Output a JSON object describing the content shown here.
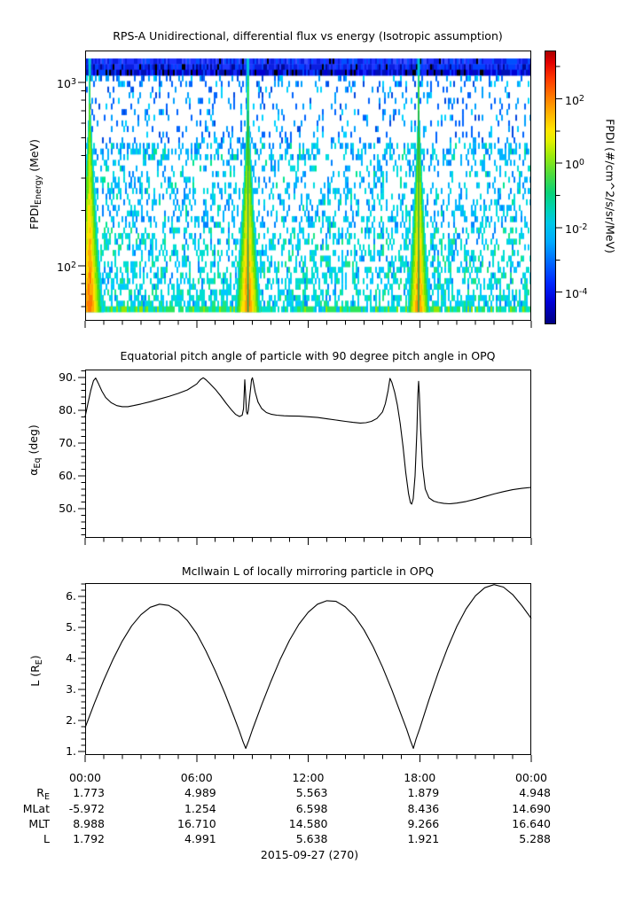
{
  "figure": {
    "date_label": "2015-09-27 (270)"
  },
  "panels": {
    "flux": {
      "title": "RPS-A Unidirectional, differential flux vs energy (Isotropic assumption)",
      "ylabel": {
        "pre": "FPDI",
        "sub": "Energy",
        "post": " (MeV)"
      },
      "yticks": [
        {
          "base": "10",
          "exp": "3",
          "value": 1000
        },
        {
          "base": "10",
          "exp": "2",
          "value": 100
        }
      ],
      "colorbar": {
        "label": "FPDI (#/cm^2/s/sr/MeV)",
        "major_ticks": [
          {
            "base": "10",
            "exp": "2",
            "k": 2
          },
          {
            "base": "10",
            "exp": "0",
            "k": 0
          },
          {
            "base": "10",
            "exp": "-2",
            "k": -2
          },
          {
            "base": "10",
            "exp": "-4",
            "k": -4
          }
        ],
        "minor_k": [
          3,
          1,
          -1,
          -3
        ]
      }
    },
    "pitch": {
      "title": "Equatorial pitch angle of particle with 90 degree pitch angle in OPQ",
      "ylabel": {
        "pre": "α",
        "sub": "Eq",
        "post": " (deg)"
      },
      "ytick_values": [
        50,
        60,
        70,
        80,
        90
      ],
      "ytick_labels": [
        "50.",
        "60.",
        "70.",
        "80.",
        "90."
      ]
    },
    "mcilwain": {
      "title": "McIlwain L of locally mirroring particle in OPQ",
      "ylabel": {
        "pre": "L (R",
        "sub": "E",
        "post": ")"
      },
      "ytick_values": [
        1,
        2,
        3,
        4,
        5,
        6
      ],
      "ytick_labels": [
        "1.",
        "2.",
        "3.",
        "4.",
        "5.",
        "6."
      ]
    }
  },
  "time_axis": {
    "tick_labels": [
      "00:00",
      "06:00",
      "12:00",
      "18:00",
      "00:00"
    ],
    "tick_hours": [
      0,
      6,
      12,
      18,
      24
    ],
    "minor_step_h": 1
  },
  "table": {
    "rows": [
      {
        "label": {
          "pre": "R",
          "sub": "E",
          "post": ""
        },
        "values": [
          "1.773",
          "4.989",
          "5.563",
          "1.879",
          "4.948"
        ]
      },
      {
        "label": {
          "pre": "MLat",
          "post": ""
        },
        "values": [
          "-5.972",
          "1.254",
          "6.598",
          "8.436",
          "14.690"
        ]
      },
      {
        "label": {
          "pre": "MLT",
          "post": ""
        },
        "values": [
          "8.988",
          "16.710",
          "14.580",
          "9.266",
          "16.640"
        ]
      },
      {
        "label": {
          "pre": "L",
          "post": ""
        },
        "values": [
          "1.792",
          "4.991",
          "5.638",
          "1.921",
          "5.288"
        ]
      }
    ]
  },
  "chart_data": [
    {
      "type": "heatmap",
      "title": "RPS-A Unidirectional, differential flux vs energy (Isotropic assumption)",
      "xlabel": "UT hours 00:00-24:00 on 2015-09-27",
      "ylabel": "FPDI_Energy (MeV)",
      "yscale": "log",
      "ylim_mev": [
        50,
        1475
      ],
      "colorbar_label": "FPDI (#/cm^2/s/sr/MeV)",
      "colorbar_lim": [
        1e-05,
        3000
      ],
      "high_energy_band_mev": [
        1090,
        1475
      ],
      "flux_enhancements_hours": [
        {
          "center": 0.2,
          "half_width": 0.75,
          "center_gap": false
        },
        {
          "center": 8.73,
          "half_width": 0.72,
          "center_gap": true
        },
        {
          "center": 17.93,
          "half_width": 0.62,
          "center_gap": true
        }
      ],
      "noise_seed": 42
    },
    {
      "type": "line",
      "name": "alpha_eq_deg",
      "title": "Equatorial pitch angle of particle with 90 degree pitch angle in OPQ",
      "ylabel": "alpha_Eq (deg)",
      "ylim": [
        41.1,
        92.4
      ],
      "x_hours_range": [
        0,
        24
      ],
      "points": [
        [
          0,
          78.0
        ],
        [
          0.15,
          82
        ],
        [
          0.3,
          86
        ],
        [
          0.45,
          89
        ],
        [
          0.57,
          89.8
        ],
        [
          0.7,
          88.3
        ],
        [
          0.9,
          85.8
        ],
        [
          1.1,
          83.9
        ],
        [
          1.4,
          82.3
        ],
        [
          1.7,
          81.4
        ],
        [
          2.0,
          81.1
        ],
        [
          2.3,
          81.1
        ],
        [
          2.6,
          81.4
        ],
        [
          3.0,
          81.9
        ],
        [
          3.5,
          82.6
        ],
        [
          4.0,
          83.4
        ],
        [
          4.5,
          84.2
        ],
        [
          5.0,
          85.1
        ],
        [
          5.5,
          86.2
        ],
        [
          6.0,
          88.0
        ],
        [
          6.2,
          89.3
        ],
        [
          6.35,
          89.9
        ],
        [
          6.5,
          89.3
        ],
        [
          6.7,
          88.2
        ],
        [
          7.0,
          86.4
        ],
        [
          7.3,
          84.3
        ],
        [
          7.6,
          82.0
        ],
        [
          7.9,
          79.9
        ],
        [
          8.1,
          78.7
        ],
        [
          8.3,
          78.1
        ],
        [
          8.45,
          78.5
        ],
        [
          8.52,
          80.5
        ],
        [
          8.59,
          89.3
        ],
        [
          8.63,
          85
        ],
        [
          8.68,
          79.5
        ],
        [
          8.73,
          78.8
        ],
        [
          8.78,
          80
        ],
        [
          8.85,
          84
        ],
        [
          8.95,
          89.3
        ],
        [
          9.0,
          89.9
        ],
        [
          9.05,
          88.5
        ],
        [
          9.15,
          85.5
        ],
        [
          9.3,
          82.5
        ],
        [
          9.5,
          80.5
        ],
        [
          9.75,
          79.3
        ],
        [
          10.0,
          78.8
        ],
        [
          10.3,
          78.5
        ],
        [
          10.7,
          78.3
        ],
        [
          11.0,
          78.25
        ],
        [
          11.5,
          78.2
        ],
        [
          12.0,
          78.0
        ],
        [
          12.5,
          77.8
        ],
        [
          13.0,
          77.4
        ],
        [
          13.5,
          77.0
        ],
        [
          14.0,
          76.6
        ],
        [
          14.4,
          76.3
        ],
        [
          14.8,
          76.1
        ],
        [
          15.1,
          76.2
        ],
        [
          15.4,
          76.6
        ],
        [
          15.7,
          77.5
        ],
        [
          16.0,
          79.5
        ],
        [
          16.15,
          82
        ],
        [
          16.3,
          86
        ],
        [
          16.4,
          89.7
        ],
        [
          16.5,
          88.5
        ],
        [
          16.65,
          85.5
        ],
        [
          16.8,
          81.5
        ],
        [
          16.95,
          76
        ],
        [
          17.1,
          69
        ],
        [
          17.25,
          61
        ],
        [
          17.4,
          54.5
        ],
        [
          17.5,
          51.8
        ],
        [
          17.57,
          51.4
        ],
        [
          17.65,
          53
        ],
        [
          17.75,
          60
        ],
        [
          17.85,
          74
        ],
        [
          17.9,
          85
        ],
        [
          17.94,
          88.8
        ],
        [
          17.98,
          85
        ],
        [
          18.05,
          74
        ],
        [
          18.15,
          63
        ],
        [
          18.3,
          56
        ],
        [
          18.5,
          53.3
        ],
        [
          18.75,
          52.3
        ],
        [
          19.0,
          51.9
        ],
        [
          19.3,
          51.6
        ],
        [
          19.6,
          51.5
        ],
        [
          20.0,
          51.7
        ],
        [
          20.5,
          52.2
        ],
        [
          21.0,
          52.9
        ],
        [
          21.5,
          53.7
        ],
        [
          22.0,
          54.5
        ],
        [
          22.5,
          55.2
        ],
        [
          23.0,
          55.8
        ],
        [
          23.5,
          56.2
        ],
        [
          24.0,
          56.5
        ]
      ]
    },
    {
      "type": "line",
      "name": "L_RE",
      "title": "McIlwain L of locally mirroring particle in OPQ",
      "ylabel": "L (R_E)",
      "ylim": [
        0.886,
        6.43
      ],
      "x_hours_range": [
        0,
        24
      ],
      "points": [
        [
          0,
          1.77
        ],
        [
          0.5,
          2.56
        ],
        [
          1,
          3.3
        ],
        [
          1.5,
          3.97
        ],
        [
          2,
          4.56
        ],
        [
          2.5,
          5.05
        ],
        [
          3,
          5.41
        ],
        [
          3.5,
          5.65
        ],
        [
          4,
          5.75
        ],
        [
          4.5,
          5.71
        ],
        [
          5,
          5.53
        ],
        [
          5.5,
          5.22
        ],
        [
          6,
          4.8
        ],
        [
          6.5,
          4.24
        ],
        [
          7,
          3.6
        ],
        [
          7.5,
          2.9
        ],
        [
          8,
          2.13
        ],
        [
          8.3,
          1.65
        ],
        [
          8.5,
          1.31
        ],
        [
          8.64,
          1.1
        ],
        [
          8.8,
          1.35
        ],
        [
          9,
          1.7
        ],
        [
          9.5,
          2.51
        ],
        [
          10,
          3.27
        ],
        [
          10.5,
          3.98
        ],
        [
          11,
          4.59
        ],
        [
          11.5,
          5.1
        ],
        [
          12,
          5.49
        ],
        [
          12.5,
          5.75
        ],
        [
          13,
          5.86
        ],
        [
          13.5,
          5.84
        ],
        [
          14,
          5.66
        ],
        [
          14.5,
          5.36
        ],
        [
          15,
          4.92
        ],
        [
          15.5,
          4.37
        ],
        [
          16,
          3.72
        ],
        [
          16.5,
          2.99
        ],
        [
          17,
          2.19
        ],
        [
          17.3,
          1.71
        ],
        [
          17.5,
          1.35
        ],
        [
          17.66,
          1.1
        ],
        [
          17.8,
          1.4
        ],
        [
          18,
          1.74
        ],
        [
          18.5,
          2.67
        ],
        [
          19,
          3.55
        ],
        [
          19.5,
          4.34
        ],
        [
          20,
          5.04
        ],
        [
          20.5,
          5.6
        ],
        [
          21,
          6.02
        ],
        [
          21.5,
          6.28
        ],
        [
          22,
          6.38
        ],
        [
          22.5,
          6.3
        ],
        [
          23,
          6.06
        ],
        [
          23.5,
          5.7
        ],
        [
          24,
          5.29
        ]
      ]
    }
  ],
  "colors": {
    "axis": "#000000",
    "curve": "#000000",
    "background": "#ffffff",
    "cb_gradient": [
      [
        "#aa0000",
        0
      ],
      [
        "#e10000",
        0.04
      ],
      [
        "#ff3800",
        0.1
      ],
      [
        "#ff7d00",
        0.17
      ],
      [
        "#ffb400",
        0.23
      ],
      [
        "#ffe600",
        0.29
      ],
      [
        "#e1f000",
        0.33
      ],
      [
        "#a0eb0a",
        0.38
      ],
      [
        "#50dc3c",
        0.45
      ],
      [
        "#0ad278",
        0.52
      ],
      [
        "#00d2b4",
        0.58
      ],
      [
        "#00c8e6",
        0.63
      ],
      [
        "#00aaff",
        0.7
      ],
      [
        "#0064ff",
        0.78
      ],
      [
        "#0028ff",
        0.85
      ],
      [
        "#0000d7",
        0.92
      ],
      [
        "#000082",
        1
      ]
    ],
    "spectro": {
      "band_rows": [
        [
          [
            "#1e32ff",
            0.3
          ],
          [
            "#0050ff",
            0.2
          ],
          [
            "#0a1ee1",
            0.3
          ],
          [
            "#3c50ff",
            0.15
          ],
          [
            "#000000",
            0.05
          ]
        ],
        [
          [
            "#0a1ee1",
            0.35
          ],
          [
            "#0040ff",
            0.25
          ],
          [
            "#2038ff",
            0.2
          ],
          [
            "#000a96",
            0.15
          ],
          [
            "#000000",
            0.05
          ]
        ],
        [
          [
            "#0010b4",
            0.35
          ],
          [
            "#0000d2",
            0.25
          ],
          [
            "#1428ff",
            0.18
          ],
          [
            "#000000",
            0.17
          ],
          [
            "#0046ff",
            0.05
          ]
        ]
      ],
      "noise_hi": [
        [
          "#0064ff",
          0.35
        ],
        [
          "#00a0ff",
          0.35
        ],
        [
          "#00d2ff",
          0.2
        ],
        [
          "#0046e1",
          0.1
        ]
      ],
      "noise_mid": [
        [
          "#00b4ff",
          0.45
        ],
        [
          "#00dce1",
          0.25
        ],
        [
          "#0082ff",
          0.22
        ],
        [
          "#00e690",
          0.08
        ]
      ],
      "noise_lo": [
        [
          "#00ded2",
          0.4
        ],
        [
          "#00c8ff",
          0.3
        ],
        [
          "#1ee682",
          0.18
        ],
        [
          "#0082ff",
          0.12
        ]
      ],
      "noise_bottom": [
        [
          "#00e1c8",
          0.45
        ],
        [
          "#2ce65a",
          0.3
        ],
        [
          "#96e600",
          0.15
        ],
        [
          "#00b4ff",
          0.1
        ]
      ],
      "cone_ramp": [
        [
          0.1,
          "#00c8ff"
        ],
        [
          0.22,
          "#00e6b4"
        ],
        [
          0.36,
          "#2cd746"
        ],
        [
          0.5,
          "#6ee600"
        ],
        [
          0.64,
          "#c3eb00"
        ],
        [
          0.78,
          "#ffe100"
        ],
        [
          0.9,
          "#ffaa00"
        ],
        [
          1.01,
          "#ff7800"
        ]
      ],
      "cone_gap": "#1eb450",
      "cone_band_column": "#00c8d7",
      "black": "#000000"
    }
  }
}
